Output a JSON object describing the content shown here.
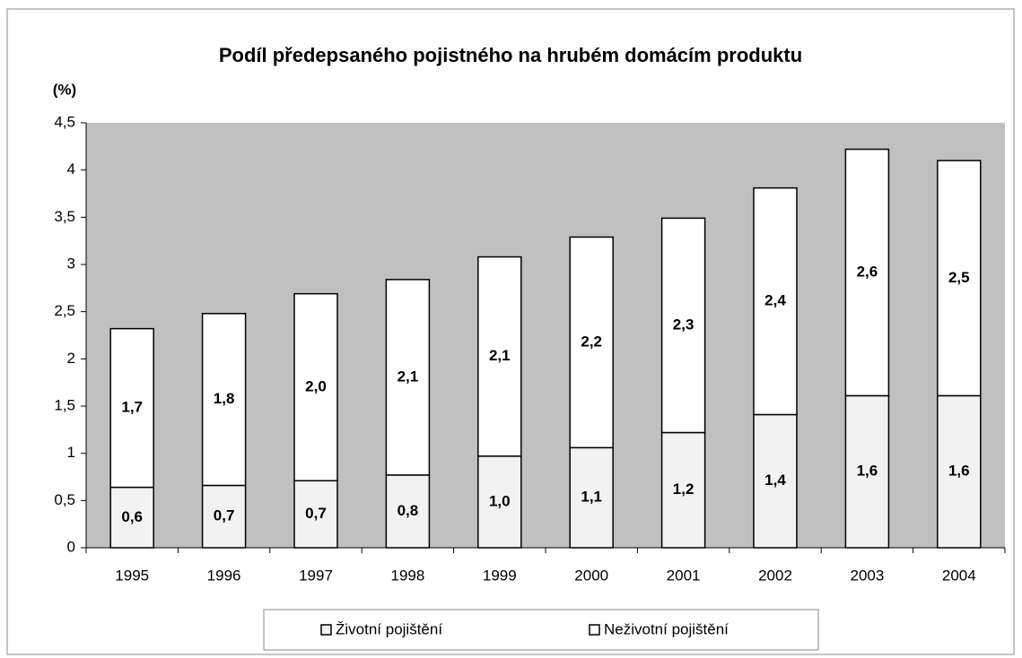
{
  "chart_data": {
    "type": "stacked_bar",
    "title": "Podíl předepsaného pojistného na hrubém domácím produktu",
    "y_label": "(%)",
    "categories": [
      "1995",
      "1996",
      "1997",
      "1998",
      "1999",
      "2000",
      "2001",
      "2002",
      "2003",
      "2004"
    ],
    "series": [
      {
        "name": "Životní pojištění",
        "color": "#f2f2f2",
        "values": [
          0.64,
          0.66,
          0.71,
          0.77,
          0.97,
          1.06,
          1.22,
          1.41,
          1.61,
          1.61
        ],
        "value_labels": [
          "0,6",
          "0,7",
          "0,7",
          "0,8",
          "1,0",
          "1,1",
          "1,2",
          "1,4",
          "1,6",
          "1,6"
        ]
      },
      {
        "name": "Neživotní pojištění",
        "color": "#ffffff",
        "values": [
          1.68,
          1.82,
          1.98,
          2.07,
          2.11,
          2.23,
          2.27,
          2.4,
          2.61,
          2.49
        ],
        "value_labels": [
          "1,7",
          "1,8",
          "2,0",
          "2,1",
          "2,1",
          "2,2",
          "2,3",
          "2,4",
          "2,6",
          "2,5"
        ]
      }
    ],
    "ylim": [
      0,
      4.5
    ],
    "yticks": [
      0,
      {
        "value": 0.5,
        "label": "0,5"
      },
      1,
      {
        "value": 1.5,
        "label": "1,5"
      },
      2,
      {
        "value": 2.5,
        "label": "2,5"
      },
      3,
      {
        "value": 3.5,
        "label": "3,5"
      },
      4,
      {
        "value": 4.5,
        "label": "4,5"
      }
    ],
    "plot_background": "#c0c0c0",
    "legend": "bottom"
  }
}
